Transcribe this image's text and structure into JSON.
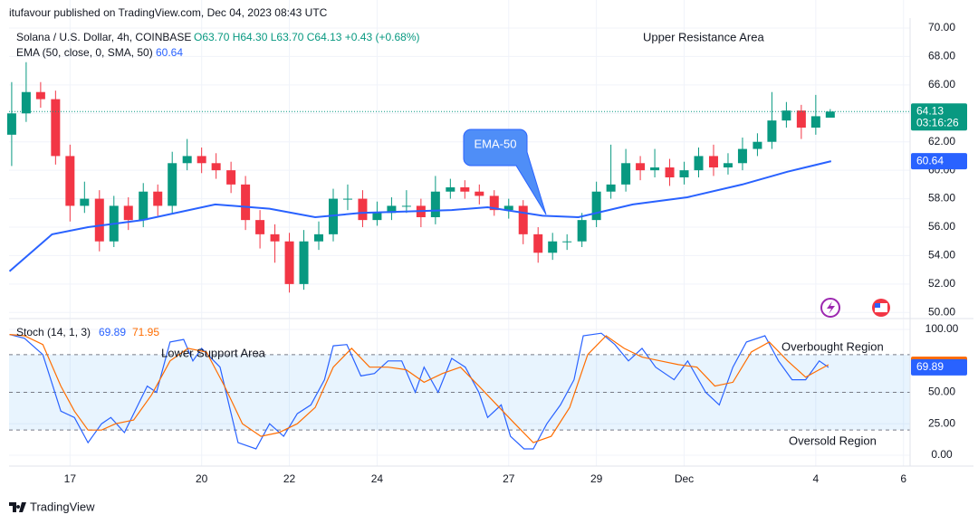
{
  "publisher": "itufavour published on TradingView.com, Dec 04, 2023 08:43 UTC",
  "footer": "TradingView",
  "chart_data": [
    {
      "type": "candlestick",
      "title": "Solana / U.S. Dollar, 4h, COINBASE",
      "ohlc": "O63.70 H64.30 L63.70 C64.13 +0.43 (+0.68%)",
      "countdown": "03:16:26",
      "up_color": "#089981",
      "down_color": "#f23645",
      "x": [
        15.67,
        16,
        16.33,
        16.67,
        17,
        17.33,
        17.67,
        18,
        18.33,
        18.67,
        19,
        19.33,
        19.67,
        20,
        20.33,
        20.67,
        21,
        21.33,
        21.67,
        22,
        22.33,
        22.67,
        23,
        23.33,
        23.67,
        24,
        24.33,
        24.67,
        25,
        25.33,
        25.67,
        26,
        26.33,
        26.67,
        27,
        27.33,
        27.67,
        28,
        28.33,
        28.67,
        29,
        29.33,
        29.67,
        30,
        30.33,
        30.67,
        31,
        31.33,
        31.67,
        32,
        32.33,
        32.67,
        33,
        33.33,
        33.67,
        34,
        34.33
      ],
      "open": [
        62.5,
        64,
        65.5,
        65,
        61,
        57.5,
        58,
        55,
        57.5,
        56.5,
        58.5,
        57.5,
        60.5,
        61,
        60.5,
        60,
        59,
        56.5,
        55.5,
        55,
        52,
        55,
        55.5,
        58,
        58,
        56.5,
        57,
        57.5,
        57.5,
        56.7,
        58.5,
        58.8,
        58.5,
        58.2,
        57.2,
        57.5,
        55.5,
        54.2,
        55,
        55,
        56.5,
        58.5,
        59,
        60.5,
        60,
        60.2,
        59.5,
        60,
        61,
        60.2,
        60.5,
        61.5,
        62,
        63.5,
        64.2,
        63,
        63.7
      ],
      "high": [
        66.2,
        67.6,
        66.2,
        65.6,
        61.8,
        59.2,
        58.6,
        58.2,
        58.1,
        59.1,
        59,
        61.3,
        62.2,
        61.6,
        61.2,
        60.6,
        59.6,
        57.2,
        56.2,
        55.6,
        55.8,
        56.4,
        58.7,
        59,
        58.6,
        57.8,
        58.1,
        58.6,
        58,
        59.6,
        59.4,
        59.3,
        59,
        58.6,
        58,
        57.9,
        56,
        55.6,
        55.5,
        57,
        59.2,
        61.8,
        61.5,
        61,
        61.5,
        60.8,
        60.6,
        61.6,
        61.8,
        61.2,
        62.3,
        62.6,
        65.5,
        64.8,
        64.6,
        65.3,
        64.3
      ],
      "low": [
        60.3,
        63.4,
        64.4,
        60.4,
        56.4,
        57,
        54.3,
        54.6,
        55.8,
        56,
        56.8,
        57,
        60,
        59.8,
        59.4,
        58.4,
        55.8,
        54.5,
        53.5,
        51.4,
        51.6,
        54.4,
        55,
        57.2,
        56,
        56.1,
        56.5,
        57,
        56,
        56.2,
        58,
        58,
        57.6,
        56.8,
        56.6,
        54.8,
        53.5,
        53.7,
        54.4,
        54.6,
        56,
        58,
        58.5,
        59.3,
        59.5,
        58.9,
        59,
        59.5,
        59.6,
        59.7,
        60,
        61,
        61.5,
        63,
        62.2,
        62.5,
        63.7
      ],
      "close": [
        64,
        65.5,
        65,
        61,
        57.5,
        58,
        55,
        57.5,
        56.5,
        58.5,
        57.5,
        60.5,
        61,
        60.5,
        60,
        59,
        56.5,
        55.5,
        55,
        52,
        55,
        55.5,
        58,
        58,
        56.5,
        57,
        57.5,
        57.5,
        56.7,
        58.5,
        58.8,
        58.5,
        58.2,
        57.2,
        57.5,
        55.5,
        54.2,
        55,
        55,
        56.5,
        58.5,
        59,
        60.5,
        60,
        60.2,
        59.5,
        60,
        61,
        60.2,
        60.5,
        61.5,
        62,
        63.5,
        64.2,
        63,
        63.8,
        64.13
      ],
      "overlays": [
        {
          "name": "EMA (50, close, 0, SMA, 50)",
          "color": "#2962ff",
          "x": [
            15.62,
            16.59,
            17.41,
            18.66,
            20.31,
            21.55,
            22.59,
            23.63,
            25.7,
            26.52,
            27.77,
            28.59,
            29.83,
            31.07,
            32.32,
            33.36,
            34.35
          ],
          "values": [
            52.9,
            55.5,
            56.0,
            56.5,
            57.6,
            57.3,
            56.7,
            57.0,
            57.2,
            57.4,
            56.8,
            56.7,
            57.6,
            58.1,
            59.0,
            59.9,
            60.64
          ]
        }
      ],
      "annotations": [
        "Upper Resistance Area",
        "EMA-50"
      ],
      "xlim": [
        15.61,
        36.15
      ],
      "xticks": [
        17,
        20,
        22,
        24,
        27,
        29,
        {
          "value": 31,
          "label": "Dec"
        },
        {
          "value": 34,
          "label": "4"
        },
        {
          "value": 36,
          "label": "6"
        }
      ],
      "ylim": [
        49.7,
        70.7
      ],
      "yticks": [
        {
          "value": 50,
          "label": "50.00"
        },
        {
          "value": 52,
          "label": "52.00"
        },
        {
          "value": 54,
          "label": "54.00"
        },
        {
          "value": 56,
          "label": "56.00"
        },
        {
          "value": 58,
          "label": "58.00"
        },
        {
          "value": 60,
          "label": "60.00"
        },
        {
          "value": 62,
          "label": "62.00"
        },
        {
          "value": 64,
          "label": "64.00"
        },
        {
          "value": 66,
          "label": "66.00"
        },
        {
          "value": 68,
          "label": "68.00"
        },
        {
          "value": 70,
          "label": "70.00"
        }
      ],
      "grid": true
    },
    {
      "type": "line",
      "title": "Stoch (14, 1, 3)",
      "series": [
        {
          "color": "#2962ff",
          "x": [
            15.62,
            15.96,
            16.38,
            16.79,
            17.1,
            17.41,
            17.72,
            17.93,
            18.24,
            18.55,
            18.76,
            18.97,
            19.28,
            19.59,
            19.8,
            20.0,
            20.42,
            20.83,
            21.24,
            21.55,
            21.87,
            22.18,
            22.49,
            22.8,
            23.0,
            23.31,
            23.63,
            23.94,
            24.25,
            24.56,
            24.87,
            25.07,
            25.39,
            25.7,
            26.01,
            26.32,
            26.52,
            26.83,
            27.04,
            27.35,
            27.56,
            27.87,
            28.18,
            28.49,
            28.7,
            29.11,
            29.42,
            29.73,
            30.04,
            30.35,
            30.77,
            31.08,
            31.49,
            31.8,
            32.11,
            32.42,
            32.84,
            33.15,
            33.46,
            33.77,
            34.08,
            34.29
          ],
          "values": [
            96,
            93,
            80,
            35,
            30,
            10,
            25,
            30,
            18,
            40,
            55,
            50,
            90,
            92,
            75,
            85,
            70,
            10,
            5,
            25,
            15,
            33,
            40,
            60,
            87,
            88,
            63,
            65,
            75,
            75,
            50,
            70,
            50,
            77,
            70,
            50,
            30,
            40,
            15,
            5,
            5,
            25,
            40,
            60,
            95,
            97,
            88,
            75,
            85,
            70,
            60,
            75,
            50,
            40,
            70,
            90,
            95,
            75,
            60,
            60,
            75,
            69.89
          ]
        },
        {
          "color": "#ff6d00",
          "x": [
            15.62,
            15.96,
            16.38,
            16.79,
            17.1,
            17.41,
            17.72,
            18.04,
            18.45,
            18.86,
            19.28,
            19.69,
            20.11,
            20.52,
            20.93,
            21.35,
            21.76,
            22.18,
            22.59,
            23.0,
            23.42,
            23.83,
            24.25,
            24.66,
            25.07,
            25.49,
            25.9,
            26.32,
            26.73,
            27.14,
            27.56,
            27.97,
            28.39,
            28.8,
            29.22,
            29.63,
            30.04,
            30.46,
            30.87,
            31.29,
            31.7,
            32.11,
            32.53,
            32.94,
            33.36,
            33.77,
            34.08,
            34.29
          ],
          "values": [
            96,
            95,
            88,
            55,
            35,
            20,
            20,
            25,
            28,
            48,
            75,
            85,
            82,
            55,
            25,
            15,
            18,
            25,
            38,
            70,
            85,
            70,
            70,
            68,
            58,
            65,
            70,
            55,
            40,
            25,
            10,
            15,
            38,
            80,
            95,
            85,
            78,
            75,
            72,
            70,
            55,
            58,
            82,
            90,
            75,
            62,
            68,
            71.95
          ]
        }
      ],
      "levels": [
        20,
        50,
        80
      ],
      "annotations": [
        "Lower Support Area",
        "Overbought Region",
        "Oversold Region"
      ],
      "xlim": [
        15.61,
        36.15
      ],
      "ylim": [
        -6.5,
        106.5
      ],
      "yticks": [
        {
          "value": 0,
          "label": "0.00"
        },
        {
          "value": 25,
          "label": "25.00"
        },
        {
          "value": 50,
          "label": "50.00"
        },
        {
          "value": 100,
          "label": "100.00"
        }
      ],
      "grid": true
    }
  ]
}
